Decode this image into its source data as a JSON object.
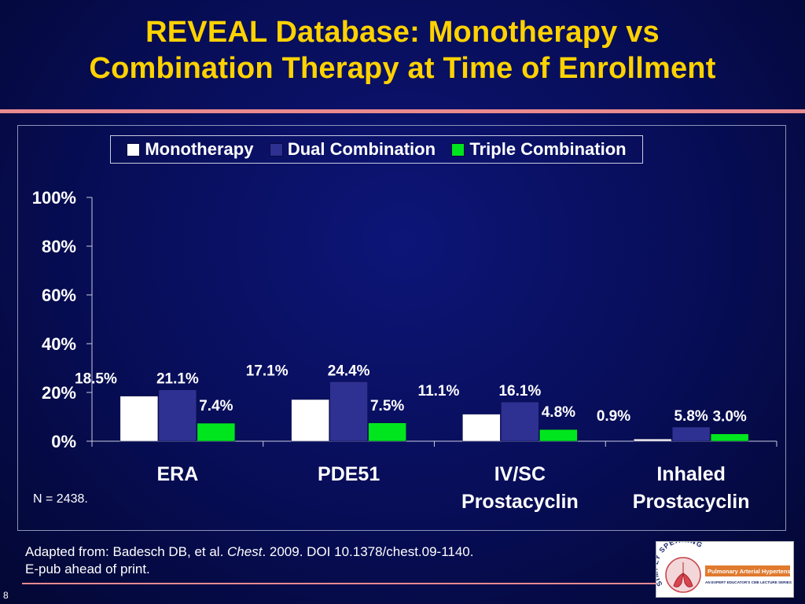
{
  "slide": {
    "title_line1": "REVEAL Database: Monotherapy vs",
    "title_line2": "Combination Therapy at Time of Enrollment",
    "note": "N = 2438.",
    "source_prefix": "Adapted from: Badesch DB, et al. ",
    "source_journal": "Chest",
    "source_suffix": ". 2009. DOI 10.1378/chest.09-1140.",
    "source_line2": "E-pub ahead of print.",
    "page_number": "8",
    "logo_text": "SIMPLY SPEAKING",
    "logo_subtitle": "Pulmonary Arterial Hypertension",
    "logo_tagline": "AN EXPERT EDUCATOR'S CME LECTURE SERIES"
  },
  "chart_data": {
    "type": "bar",
    "title": "",
    "xlabel": "",
    "ylabel": "",
    "categories": [
      "ERA",
      "PDE51",
      "IV/SC Prostacyclin",
      "Inhaled Prostacyclin"
    ],
    "series": [
      {
        "name": "Monotherapy",
        "values": [
          18.5,
          17.1,
          11.1,
          0.9
        ],
        "labels": [
          "18.5%",
          "17.1%",
          "11.1%",
          "0.9%"
        ],
        "color": "#ffffff"
      },
      {
        "name": "Dual Combination",
        "values": [
          21.1,
          24.4,
          16.1,
          5.8
        ],
        "labels": [
          "21.1%",
          "24.4%",
          "16.1%",
          "5.8%"
        ],
        "color": "#2e3192"
      },
      {
        "name": "Triple Combination",
        "values": [
          7.4,
          7.5,
          4.8,
          3.0
        ],
        "labels": [
          "7.4%",
          "7.5%",
          "4.8%",
          "3.0%"
        ],
        "color": "#00e61e"
      }
    ],
    "ylim": [
      0,
      100
    ],
    "yticks": [
      0,
      20,
      40,
      60,
      80,
      100
    ],
    "ytick_labels": [
      "0%",
      "20%",
      "40%",
      "60%",
      "80%",
      "100%"
    ],
    "grid": false,
    "legend_position": "top"
  }
}
